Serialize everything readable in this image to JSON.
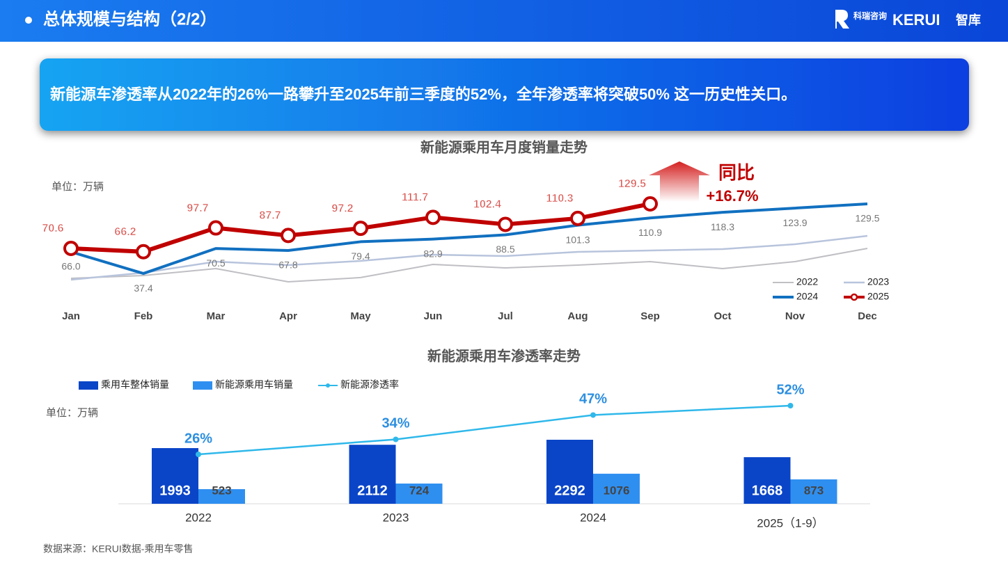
{
  "header": {
    "title": "总体规模与结构（2/2）",
    "logo_cn": "科瑞咨询",
    "logo_en": "KERUI",
    "logo_suffix": "智库"
  },
  "banner": "新能源车渗透率从2022年的26%一路攀升至2025年前三季度的52%，全年渗透率将突破50% 这一历史性关口。",
  "source": "数据来源：KERUI数据-乘用车零售",
  "chart_data": [
    {
      "type": "line",
      "title": "新能源乘用车月度销量走势",
      "unit": "单位：万辆",
      "annotation": {
        "title": "同比",
        "value": "+16.7%"
      },
      "legend": "lower right",
      "categories": [
        "Jan",
        "Feb",
        "Mar",
        "Apr",
        "May",
        "Jun",
        "Jul",
        "Aug",
        "Sep",
        "Oct",
        "Nov",
        "Dec"
      ],
      "series": [
        {
          "name": "2022",
          "color": "#bfbfc4",
          "values": [
            31,
            34.7,
            43.9,
            26.4,
            32,
            49.4,
            44.8,
            48.5,
            53.1,
            43.9,
            53.1,
            70.6
          ]
        },
        {
          "name": "2023",
          "color": "#b8c4dc",
          "values": [
            29.2,
            38.4,
            53.1,
            48.5,
            54,
            62.3,
            60.5,
            66,
            67.8,
            69.7,
            76.1,
            87.2
          ]
        },
        {
          "name": "2024",
          "color": "#1170c0",
          "data_labels": true,
          "values": [
            66,
            37.4,
            70.5,
            67.8,
            79.4,
            82.9,
            88.5,
            101.3,
            110.9,
            118.3,
            123.9,
            129.5
          ],
          "value_labels": [
            "66.0",
            "37.4",
            "70.5",
            "67.8",
            "79.4",
            "82.9",
            "88.5",
            "101.3",
            "110.9",
            "118.3",
            "123.9",
            "129.5"
          ]
        },
        {
          "name": "2025",
          "color": "#c00000",
          "data_labels": true,
          "markers": true,
          "values": [
            70.6,
            66.2,
            97.7,
            87.7,
            97.2,
            111.7,
            102.4,
            110.3,
            129.5,
            null,
            null,
            null
          ]
        }
      ]
    },
    {
      "type": "bar",
      "title": "新能源乘用车渗透率走势",
      "unit": "单位：万辆",
      "legend": "upper left",
      "categories": [
        "2022",
        "2023",
        "2024",
        "2025（1-9）"
      ],
      "series": [
        {
          "name": "乘用车整体销量",
          "color": "#0a45c8",
          "values": [
            1993,
            2112,
            2292,
            1668
          ]
        },
        {
          "name": "新能源乘用车销量",
          "color": "#2f8ff0",
          "values": [
            523,
            724,
            1076,
            873
          ]
        },
        {
          "name": "新能源渗透率",
          "color": "#2fb8ea",
          "type": "line",
          "axis": "y2",
          "values": [
            26,
            34,
            47,
            52
          ],
          "value_labels": [
            "26%",
            "34%",
            "47%",
            "52%"
          ]
        }
      ]
    }
  ]
}
